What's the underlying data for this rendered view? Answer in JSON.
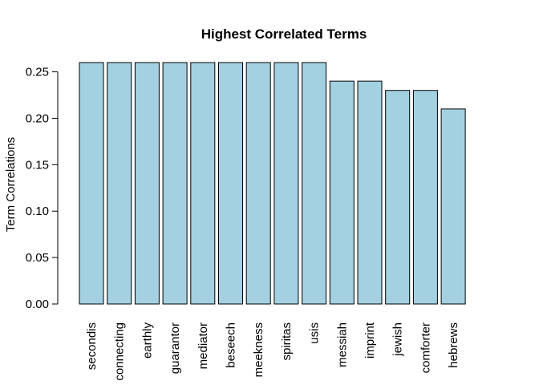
{
  "chart_data": {
    "type": "bar",
    "title": "Highest Correlated Terms",
    "xlabel": "",
    "ylabel": "Term Correlations",
    "categories": [
      "secondis",
      "connecting",
      "earthly",
      "guarantor",
      "mediator",
      "beseech",
      "meekness",
      "spiritas",
      "usis",
      "messiah",
      "imprint",
      "jewish",
      "comforter",
      "hebrews"
    ],
    "values": [
      0.26,
      0.26,
      0.26,
      0.26,
      0.26,
      0.26,
      0.26,
      0.26,
      0.26,
      0.24,
      0.24,
      0.23,
      0.23,
      0.21
    ],
    "ylim": [
      0,
      0.26
    ],
    "yticks": [
      "0.00",
      "0.05",
      "0.10",
      "0.15",
      "0.20",
      "0.25"
    ],
    "bar_color": "#a3d1e2",
    "bar_border_color": "#000000",
    "grid": false
  }
}
